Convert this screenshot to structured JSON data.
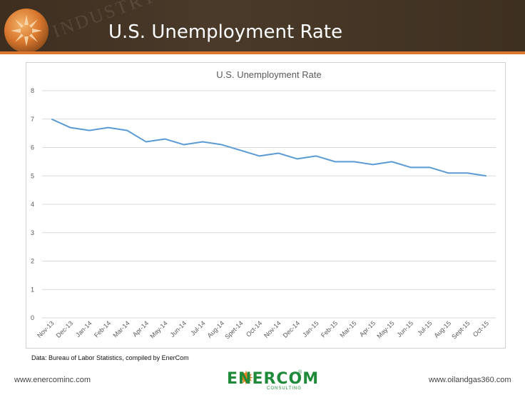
{
  "header": {
    "title": "U.S. Unemployment Rate",
    "watermark": "INDUSTRY"
  },
  "footer": {
    "left_url": "www.enercominc.com",
    "right_url": "www.oilandgas360.com",
    "logo_text": "ENERCOM",
    "logo_sub": "CONSULTING",
    "logo_reg": "®"
  },
  "source_note": "Data: Bureau of Labor Statistics, compiled by EnerCom",
  "colors": {
    "header_bg": "#3d2e1f",
    "accent_orange": "#d9782e",
    "line": "#5b9bd5",
    "brand_green": "#1f8a3a"
  },
  "chart_data": {
    "type": "line",
    "title": "U.S. Unemployment Rate",
    "xlabel": "",
    "ylabel": "",
    "ylim": [
      0,
      8
    ],
    "yticks": [
      0,
      1,
      2,
      3,
      4,
      5,
      6,
      7,
      8
    ],
    "grid": true,
    "legend": "none",
    "categories": [
      "Nov-13",
      "Dec-13",
      "Jan-14",
      "Feb-14",
      "Mar-14",
      "Apr-14",
      "May-14",
      "Jun-14",
      "Jul-14",
      "Aug-14",
      "Spet-14",
      "Oct-14",
      "Nov-14",
      "Dec-14",
      "Jan-15",
      "Feb-15",
      "Mar-15",
      "Apr-15",
      "May-15",
      "Jun-15",
      "Jul-15",
      "Aug-15",
      "Sept-15",
      "Oct-15"
    ],
    "series": [
      {
        "values": [
          7.0,
          6.7,
          6.6,
          6.7,
          6.6,
          6.2,
          6.3,
          6.1,
          6.2,
          6.1,
          5.9,
          5.7,
          5.8,
          5.6,
          5.7,
          5.5,
          5.5,
          5.4,
          5.5,
          5.3,
          5.3,
          5.1,
          5.1,
          5.0
        ]
      }
    ]
  }
}
